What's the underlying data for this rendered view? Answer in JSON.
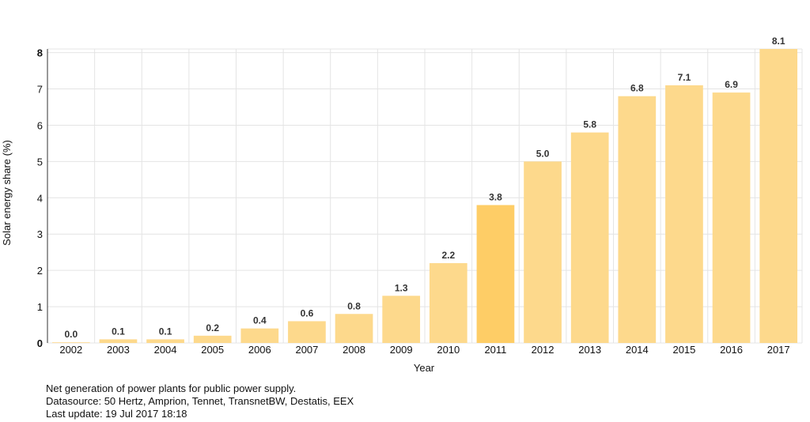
{
  "chart_data": {
    "type": "bar",
    "categories": [
      "2002",
      "2003",
      "2004",
      "2005",
      "2006",
      "2007",
      "2008",
      "2009",
      "2010",
      "2011",
      "2012",
      "2013",
      "2014",
      "2015",
      "2016",
      "2017"
    ],
    "values": [
      0.0,
      0.1,
      0.1,
      0.2,
      0.4,
      0.6,
      0.8,
      1.3,
      2.2,
      3.8,
      5.0,
      5.8,
      6.8,
      7.1,
      6.9,
      8.1
    ],
    "data_labels": [
      "0.0",
      "0.1",
      "0.1",
      "0.2",
      "0.4",
      "0.6",
      "0.8",
      "1.3",
      "2.2",
      "3.8",
      "5.0",
      "5.8",
      "6.8",
      "7.1",
      "6.9",
      "8.1"
    ],
    "highlighted_category": "2011",
    "xlabel": "Year",
    "ylabel": "Solar energy share (%)",
    "ylim": [
      0,
      8.1
    ],
    "yticks": [
      "0",
      "1",
      "2",
      "3",
      "4",
      "5",
      "6",
      "7",
      "8"
    ],
    "grid": true,
    "colors": {
      "bar": "#fdd98c",
      "bar_highlight": "#fecd66",
      "grid": "#e4e4e4"
    }
  },
  "footer": {
    "line1": "Net generation of power plants for public power supply.",
    "line2": "Datasource: 50 Hertz, Amprion, Tennet, TransnetBW, Destatis, EEX",
    "line3": "Last update: 19 Jul 2017 18:18"
  }
}
